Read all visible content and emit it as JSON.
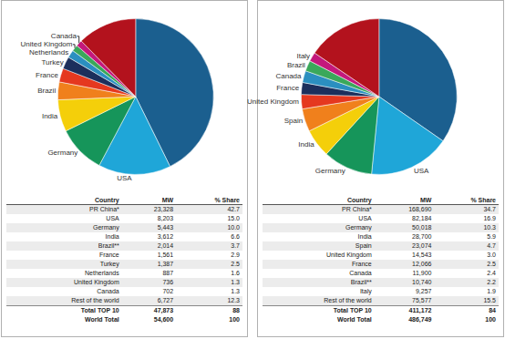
{
  "chart_data": [
    {
      "type": "pie",
      "categories": [
        null,
        "USA",
        "Germany",
        "India",
        "Brazil",
        "France",
        "Turkey",
        "Netherlands",
        "United Kingdom",
        "Canada",
        null
      ],
      "values": [
        23328,
        8203,
        5443,
        3612,
        2014,
        1561,
        1387,
        887,
        736,
        702,
        6727
      ],
      "colors": [
        "#1b5f8f",
        "#1fa6d8",
        "#16955a",
        "#f4cf0a",
        "#f0801c",
        "#e5381f",
        "#1c2f5c",
        "#2b8fc0",
        "#3aa85a",
        "#c4187c",
        "#b3121d"
      ]
    },
    {
      "type": "pie",
      "categories": [
        null,
        "USA",
        "Germany",
        "India",
        "Spain",
        "United Kingdom",
        "France",
        "Canada",
        "Brazil",
        "Italy",
        null
      ],
      "values": [
        168690,
        82184,
        50018,
        28700,
        23074,
        14543,
        12066,
        11900,
        10740,
        9257,
        75577
      ],
      "colors": [
        "#1b5f8f",
        "#1fa6d8",
        "#16955a",
        "#f4cf0a",
        "#f0801c",
        "#e5381f",
        "#1c2f5c",
        "#2b8fc0",
        "#3aa85a",
        "#c4187c",
        "#b3121d"
      ]
    }
  ],
  "tables": [
    {
      "header": [
        "Country",
        "MW",
        "% Share"
      ],
      "rows": [
        [
          "PR China*",
          "23,328",
          "42.7"
        ],
        [
          "USA",
          "8,203",
          "15.0"
        ],
        [
          "Germany",
          "5,443",
          "10.0"
        ],
        [
          "India",
          "3,612",
          "6.6"
        ],
        [
          "Brazil**",
          "2,014",
          "3.7"
        ],
        [
          "France",
          "1,561",
          "2.9"
        ],
        [
          "Turkey",
          "1,387",
          "2.5"
        ],
        [
          "Netherlands",
          "887",
          "1.6"
        ],
        [
          "United Kingdom",
          "736",
          "1.3"
        ],
        [
          "Canada",
          "702",
          "1.3"
        ],
        [
          "Rest of the world",
          "6,727",
          "12.3"
        ],
        [
          "Total TOP 10",
          "47,873",
          "88"
        ],
        [
          "World Total",
          "54,600",
          "100"
        ]
      ]
    },
    {
      "header": [
        "Country",
        "MW",
        "% Share"
      ],
      "rows": [
        [
          "PR China*",
          "168,690",
          "34.7"
        ],
        [
          "USA",
          "82,184",
          "16.9"
        ],
        [
          "Germany",
          "50,018",
          "10.3"
        ],
        [
          "India",
          "28,700",
          "5.9"
        ],
        [
          "Spain",
          "23,074",
          "4.7"
        ],
        [
          "United Kingdom",
          "14,543",
          "3.0"
        ],
        [
          "France",
          "12,066",
          "2.5"
        ],
        [
          "Canada",
          "11,900",
          "2.4"
        ],
        [
          "Brazil**",
          "10,740",
          "2.2"
        ],
        [
          "Italy",
          "9,257",
          "1.9"
        ],
        [
          "Rest of the world",
          "75,577",
          "15.5"
        ],
        [
          "Total TOP 10",
          "411,172",
          "84"
        ],
        [
          "World Total",
          "486,749",
          "100"
        ]
      ]
    }
  ]
}
